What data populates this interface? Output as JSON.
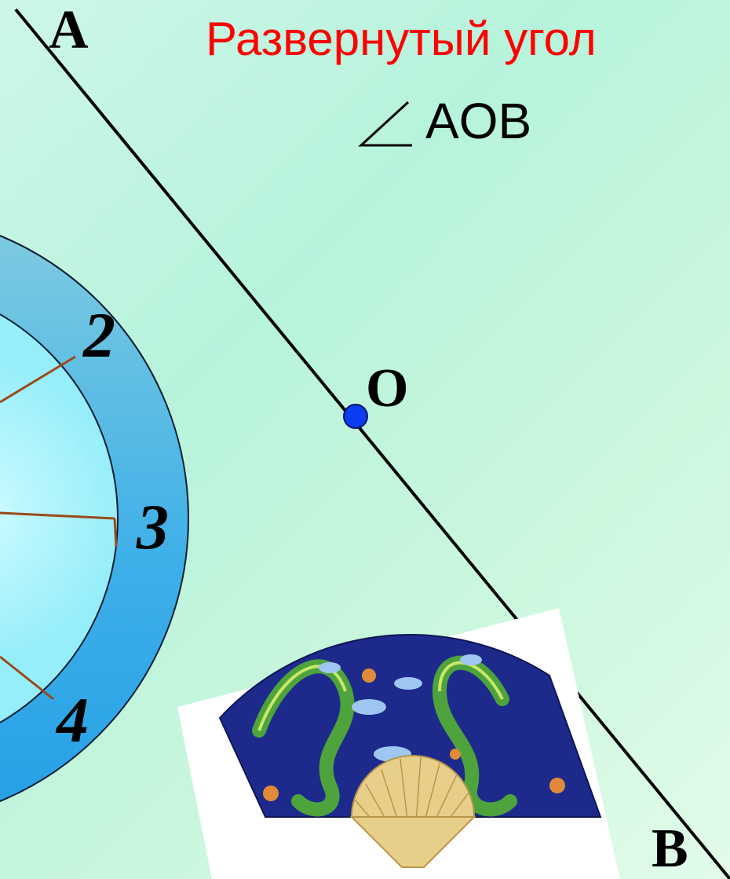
{
  "slide": {
    "title": "Развернутый угол",
    "angle_label": "AOB",
    "title_color": "#ff0000",
    "angle_label_color": "#000000"
  },
  "points": {
    "a": "A",
    "o": "O",
    "b": "B"
  },
  "dial": {
    "numbers": [
      "2",
      "3",
      "4"
    ]
  },
  "colors": {
    "background": "#c4f5e0",
    "dial_ring": "#2fa6e6",
    "dial_face": "#a6f2fb",
    "dial_hands": "#9a4a1a",
    "point_o": "#0a3cf0",
    "fan_silk": "#1d2a8c",
    "fan_ribs": "#e7cf8a",
    "dragon": "#4ea33c"
  },
  "icons": {
    "angle": "angle-symbol-icon",
    "point": "point-o-icon",
    "fan": "dragon-fan-image"
  }
}
